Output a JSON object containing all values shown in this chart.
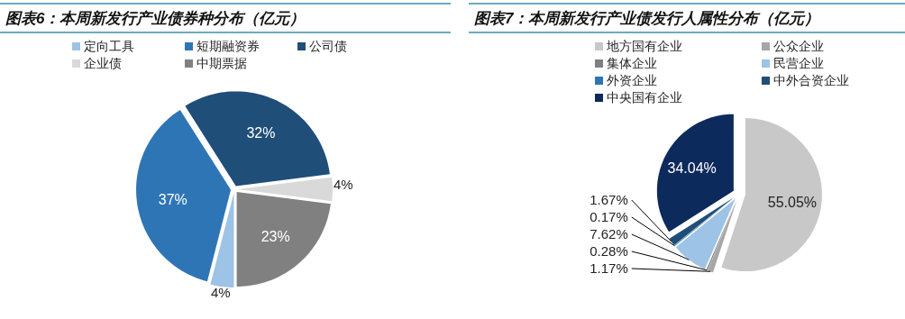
{
  "chart_data": [
    {
      "type": "pie",
      "title": "图表6：本周新发行产业债券种分布（亿元）",
      "legend": "top",
      "value_labels": [
        "4%",
        "37%",
        "32%",
        "4%",
        "23%"
      ],
      "categories": [
        "定向工具",
        "短期融资券",
        "公司债",
        "企业债",
        "中期票据"
      ],
      "values": [
        4,
        37,
        32,
        4,
        23
      ],
      "colors": [
        "#9dc3e6",
        "#2e75b6",
        "#1f4e79",
        "#d9d9d9",
        "#808080"
      ]
    },
    {
      "type": "pie",
      "title": "图表7：本周新发行产业债发行人属性分布（亿元）",
      "legend": "top",
      "value_labels": [
        "55.05%",
        "1.17%",
        "0.28%",
        "7.62%",
        "0.17%",
        "1.67%",
        "34.04%"
      ],
      "categories": [
        "地方国有企业",
        "公众企业",
        "集体企业",
        "民营企业",
        "外资企业",
        "中外合资企业",
        "中央国有企业"
      ],
      "values": [
        55.05,
        1.17,
        0.28,
        7.62,
        0.17,
        1.67,
        34.04
      ],
      "colors": [
        "#c8c8c8",
        "#a6a6a6",
        "#7f7f7f",
        "#9dc3e6",
        "#2e75b6",
        "#1f4e79",
        "#0d2a5c"
      ]
    }
  ]
}
